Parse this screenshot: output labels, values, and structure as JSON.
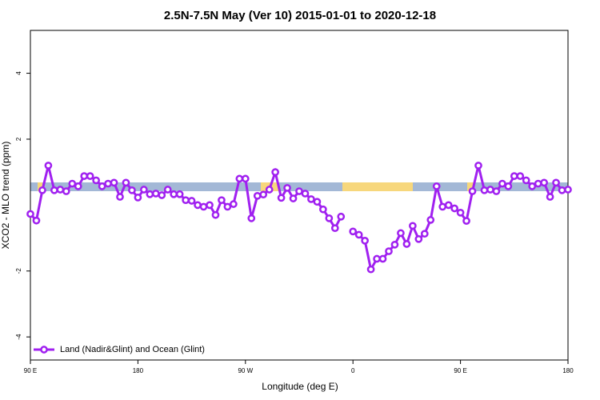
{
  "chart_data": {
    "type": "line",
    "title": "2.5N-7.5N May (Ver 10)   2015-01-01 to 2020-12-18",
    "x_label": "Longitude (deg E)",
    "y_label": "XCO2 - MLO trend (ppm)",
    "x": [
      90,
      95,
      100,
      105,
      110,
      115,
      120,
      125,
      130,
      135,
      140,
      145,
      150,
      155,
      160,
      165,
      170,
      175,
      180,
      185,
      190,
      195,
      200,
      205,
      210,
      215,
      220,
      225,
      230,
      235,
      240,
      245,
      250,
      255,
      260,
      265,
      270,
      275,
      280,
      285,
      290,
      295,
      300,
      305,
      310,
      315,
      320,
      325,
      330,
      335,
      340,
      345,
      350,
      355,
      360,
      365,
      370,
      375,
      380,
      385,
      390,
      395,
      400,
      405,
      410,
      415,
      420,
      425,
      430,
      435,
      440,
      445,
      450,
      455,
      460,
      465,
      470,
      475,
      480,
      485,
      490,
      495,
      500,
      505,
      510,
      515,
      520,
      525,
      530,
      535,
      540
    ],
    "series": [
      {
        "name": "Land (Nadir&Glint) and Ocean (Glint)",
        "color": "#a020f0",
        "values": [
          -0.27,
          -0.47,
          0.45,
          1.2,
          0.45,
          0.47,
          0.42,
          0.65,
          0.57,
          0.88,
          0.88,
          0.75,
          0.57,
          0.65,
          0.68,
          0.25,
          0.68,
          0.45,
          0.23,
          0.47,
          0.33,
          0.35,
          0.3,
          0.47,
          0.33,
          0.33,
          0.15,
          0.13,
          0.0,
          -0.05,
          0.0,
          -0.3,
          0.15,
          -0.05,
          0.03,
          0.8,
          0.8,
          -0.4,
          0.28,
          0.32,
          0.47,
          1.0,
          0.22,
          0.52,
          0.2,
          0.42,
          0.35,
          0.18,
          0.1,
          -0.13,
          -0.4,
          -0.7,
          -0.35,
          null,
          -0.8,
          -0.9,
          -1.08,
          -1.95,
          -1.63,
          -1.63,
          -1.4,
          -1.2,
          -0.85,
          -1.18,
          -0.63,
          -1.03,
          -0.87,
          -0.45,
          0.57,
          -0.05,
          0.0,
          -0.1,
          -0.23,
          -0.48,
          0.42,
          1.2,
          0.45,
          0.47,
          0.42,
          0.65,
          0.57,
          0.88,
          0.88,
          0.75,
          0.57,
          0.65,
          0.68,
          0.25,
          0.68,
          0.45,
          0.47
        ]
      }
    ],
    "xlim": [
      90,
      540
    ],
    "xticks": [
      {
        "value": 90,
        "label": "90 E"
      },
      180,
      {
        "value": 270,
        "label": "90 W"
      },
      {
        "value": 360,
        "label": "0"
      },
      {
        "value": 450,
        "label": "90 E"
      },
      {
        "value": 540,
        "label": "180"
      }
    ],
    "ylim": [
      -4.7,
      5.3
    ],
    "yticks": [
      -4,
      -2,
      2,
      4
    ],
    "legend": "bottom-left"
  }
}
